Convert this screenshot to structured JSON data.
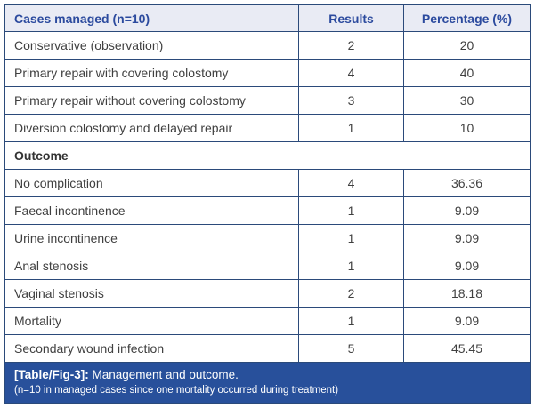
{
  "colors": {
    "border": "#2b4a7a",
    "header_bg": "#e9ebf4",
    "header_text": "#2b4a9e",
    "caption_bg": "#28509b",
    "caption_text": "#ffffff",
    "body_text": "#404040"
  },
  "table": {
    "header": {
      "cases": "Cases managed (n=10)",
      "results": "Results",
      "percentage": "Percentage (%)"
    },
    "management_rows": [
      {
        "label": "Conservative (observation)",
        "results": "2",
        "percentage": "20"
      },
      {
        "label": "Primary repair with covering colostomy",
        "results": "4",
        "percentage": "40"
      },
      {
        "label": "Primary repair without covering colostomy",
        "results": "3",
        "percentage": "30"
      },
      {
        "label": "Diversion colostomy and delayed repair",
        "results": "1",
        "percentage": "10"
      }
    ],
    "section_header": "Outcome",
    "outcome_rows": [
      {
        "label": "No complication",
        "results": "4",
        "percentage": "36.36"
      },
      {
        "label": "Faecal incontinence",
        "results": "1",
        "percentage": "9.09"
      },
      {
        "label": "Urine incontinence",
        "results": "1",
        "percentage": "9.09"
      },
      {
        "label": "Anal stenosis",
        "results": "1",
        "percentage": "9.09"
      },
      {
        "label": "Vaginal stenosis",
        "results": "2",
        "percentage": "18.18"
      },
      {
        "label": "Mortality",
        "results": "1",
        "percentage": "9.09"
      },
      {
        "label": "Secondary wound infection",
        "results": "5",
        "percentage": "45.45"
      }
    ],
    "caption": {
      "tag": "[Table/Fig-3]:",
      "title": " Management and outcome.",
      "note": "(n=10 in managed cases since one mortality occurred during treatment)"
    }
  },
  "chart_data": {
    "type": "table",
    "title": "[Table/Fig-3]: Management and outcome.",
    "note": "n=10 in managed cases since one mortality occurred during treatment",
    "columns": [
      "Cases managed (n=10)",
      "Results",
      "Percentage (%)"
    ],
    "sections": [
      {
        "name": "Cases managed (n=10)",
        "rows": [
          [
            "Conservative (observation)",
            2,
            20
          ],
          [
            "Primary repair with covering colostomy",
            4,
            40
          ],
          [
            "Primary repair without covering colostomy",
            3,
            30
          ],
          [
            "Diversion colostomy and delayed repair",
            1,
            10
          ]
        ]
      },
      {
        "name": "Outcome",
        "rows": [
          [
            "No complication",
            4,
            36.36
          ],
          [
            "Faecal incontinence",
            1,
            9.09
          ],
          [
            "Urine incontinence",
            1,
            9.09
          ],
          [
            "Anal stenosis",
            1,
            9.09
          ],
          [
            "Vaginal stenosis",
            2,
            18.18
          ],
          [
            "Mortality",
            1,
            9.09
          ],
          [
            "Secondary wound infection",
            5,
            45.45
          ]
        ]
      }
    ]
  }
}
